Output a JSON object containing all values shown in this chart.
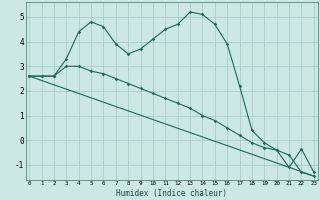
{
  "xlabel": "Humidex (Indice chaleur)",
  "background_color": "#cce8e4",
  "grid_color": "#aaccc8",
  "line_color": "#1a6b5a",
  "series1_x": [
    0,
    1,
    2,
    3,
    4,
    5,
    6,
    7,
    8,
    9,
    10,
    11,
    12,
    13,
    14,
    15,
    16,
    17,
    18,
    19,
    20,
    21,
    22,
    23
  ],
  "series1_y": [
    2.6,
    2.6,
    2.6,
    3.3,
    4.4,
    4.8,
    4.6,
    3.9,
    3.5,
    3.7,
    4.1,
    4.5,
    4.7,
    5.2,
    5.1,
    4.7,
    3.9,
    2.2,
    0.4,
    -0.1,
    -0.4,
    -1.1,
    -0.35,
    -1.3
  ],
  "series2_x": [
    0,
    1,
    2,
    3,
    4,
    5,
    6,
    7,
    8,
    9,
    10,
    11,
    12,
    13,
    14,
    15,
    16,
    17,
    18,
    19,
    20,
    21,
    22,
    23
  ],
  "series2_y": [
    2.6,
    2.6,
    2.6,
    3.0,
    3.0,
    2.8,
    2.7,
    2.5,
    2.3,
    2.1,
    1.9,
    1.7,
    1.5,
    1.3,
    1.0,
    0.8,
    0.5,
    0.2,
    -0.1,
    -0.3,
    -0.4,
    -0.6,
    -1.3,
    -1.45
  ],
  "series3_x": [
    0,
    23
  ],
  "series3_y": [
    2.6,
    -1.45
  ],
  "ylim": [
    -1.6,
    5.6
  ],
  "xlim": [
    -0.3,
    23.3
  ],
  "yticks": [
    -1,
    0,
    1,
    2,
    3,
    4,
    5
  ],
  "xtick_labels": [
    "0",
    "1",
    "2",
    "3",
    "4",
    "5",
    "6",
    "7",
    "8",
    "9",
    "10",
    "11",
    "12",
    "13",
    "14",
    "15",
    "16",
    "17",
    "18",
    "19",
    "20",
    "21",
    "22",
    "23"
  ]
}
